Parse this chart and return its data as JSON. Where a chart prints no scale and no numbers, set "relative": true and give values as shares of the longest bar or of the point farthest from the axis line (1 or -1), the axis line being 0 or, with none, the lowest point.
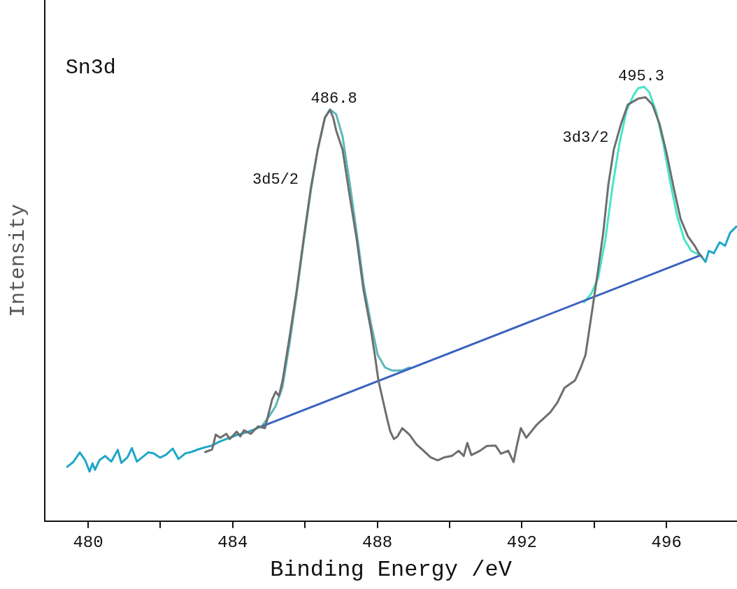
{
  "chart_data": {
    "type": "line",
    "xlabel": "Binding Energy /eV",
    "ylabel": "Intensity",
    "relative": true,
    "xlim": [
      478.8,
      497.95
    ],
    "xticks": [
      480,
      {
        "value": 482,
        "label": null
      },
      484,
      {
        "value": 486,
        "label": null
      },
      488,
      {
        "value": 490,
        "label": null
      },
      492,
      {
        "value": 494,
        "label": null
      },
      496
    ],
    "grid": false,
    "legend": false,
    "marker": "none",
    "line_style": "solid",
    "tick_labels": "x",
    "annotations": [
      "Sn3d",
      {
        "text": "486.8",
        "x": 486.8,
        "y": 0.948
      },
      {
        "text": "495.3",
        "x": 495.3,
        "y": 1.0
      },
      "3d5/2",
      "3d3/2"
    ],
    "series": [
      {
        "color": "#6e6e6e",
        "x": [
          483.24,
          483.43,
          483.53,
          483.66,
          483.82,
          483.92,
          484.11,
          484.21,
          484.31,
          484.5,
          484.7,
          484.89,
          485.09,
          485.19,
          485.28,
          485.38,
          485.58,
          485.77,
          485.96,
          486.16,
          486.35,
          486.55,
          486.69,
          486.78,
          486.86,
          487.04,
          487.23,
          487.43,
          487.62,
          487.82,
          487.93,
          488.03,
          488.15,
          488.27,
          488.36,
          488.46,
          488.56,
          488.69,
          488.89,
          489.08,
          489.28,
          489.47,
          489.67,
          489.86,
          490.06,
          490.25,
          490.39,
          490.49,
          490.6,
          490.84,
          491.03,
          491.27,
          491.42,
          491.62,
          491.77,
          491.85,
          491.97,
          492.12,
          492.4,
          492.79,
          492.98,
          493.18,
          493.47,
          493.63,
          493.76,
          493.92,
          494.09,
          494.25,
          494.39,
          494.54,
          494.74,
          494.93,
          495.22,
          495.42,
          495.61,
          495.81,
          496.0,
          496.2,
          496.39,
          496.59,
          496.78,
          496.88,
          496.98
        ],
        "values": [
          0.159,
          0.165,
          0.199,
          0.192,
          0.201,
          0.189,
          0.206,
          0.195,
          0.209,
          0.201,
          0.218,
          0.214,
          0.28,
          0.298,
          0.288,
          0.324,
          0.428,
          0.531,
          0.649,
          0.767,
          0.855,
          0.929,
          0.947,
          0.929,
          0.9,
          0.855,
          0.752,
          0.649,
          0.531,
          0.442,
          0.383,
          0.324,
          0.28,
          0.236,
          0.206,
          0.189,
          0.195,
          0.214,
          0.199,
          0.177,
          0.162,
          0.147,
          0.14,
          0.147,
          0.15,
          0.162,
          0.15,
          0.18,
          0.152,
          0.162,
          0.173,
          0.174,
          0.155,
          0.162,
          0.136,
          0.17,
          0.214,
          0.192,
          0.221,
          0.251,
          0.273,
          0.307,
          0.324,
          0.354,
          0.383,
          0.472,
          0.568,
          0.664,
          0.774,
          0.855,
          0.914,
          0.959,
          0.973,
          0.976,
          0.959,
          0.914,
          0.848,
          0.767,
          0.696,
          0.656,
          0.634,
          0.619,
          0.608
        ]
      },
      {
        "color": "#1fa6c8",
        "x": [
          479.42,
          479.59,
          479.77,
          479.92,
          480.04,
          480.12,
          480.19,
          480.31,
          480.47,
          480.64,
          480.82,
          480.92,
          481.09,
          481.21,
          481.35,
          481.5,
          481.66,
          481.81,
          481.99,
          482.16,
          482.34,
          482.5,
          482.69,
          482.85,
          483.04,
          483.24,
          483.43,
          483.63,
          483.82,
          484.11,
          484.41,
          484.8,
          490.0,
          496.94,
          497.08,
          497.17,
          497.31,
          497.47,
          497.62,
          497.76,
          497.93
        ],
        "values": [
          0.125,
          0.136,
          0.158,
          0.14,
          0.114,
          0.133,
          0.118,
          0.14,
          0.15,
          0.137,
          0.164,
          0.134,
          0.147,
          0.168,
          0.137,
          0.147,
          0.158,
          0.156,
          0.146,
          0.153,
          0.167,
          0.143,
          0.156,
          0.159,
          0.165,
          0.17,
          0.174,
          0.183,
          0.189,
          0.198,
          0.205,
          0.218,
          null,
          0.612,
          0.597,
          0.622,
          0.617,
          0.642,
          0.634,
          0.664,
          0.678
        ]
      },
      {
        "color": "#3a62c0",
        "x": [
          484.8,
          496.94
        ],
        "values": [
          0.218,
          0.612
        ]
      },
      {
        "color": "#5cb8b8",
        "x": [
          484.8,
          484.99,
          485.19,
          485.38,
          485.58,
          485.77,
          485.96,
          486.16,
          486.35,
          486.55,
          486.69,
          486.86,
          487.04,
          487.23,
          487.43,
          487.62,
          487.82,
          488.01,
          488.21,
          488.4,
          488.69,
          488.89
        ],
        "values": [
          0.218,
          0.239,
          0.265,
          0.31,
          0.413,
          0.524,
          0.642,
          0.76,
          0.855,
          0.929,
          0.948,
          0.937,
          0.885,
          0.782,
          0.664,
          0.546,
          0.457,
          0.383,
          0.354,
          0.347,
          0.347,
          0.354
        ]
      },
      {
        "color": "#45e6c8",
        "x": [
          493.72,
          493.92,
          494.11,
          494.31,
          494.5,
          494.7,
          494.89,
          495.09,
          495.22,
          495.38,
          495.52,
          495.71,
          495.91,
          496.1,
          496.3,
          496.49,
          496.69,
          496.94
        ],
        "values": [
          0.504,
          0.524,
          0.56,
          0.649,
          0.767,
          0.87,
          0.944,
          0.981,
          0.997,
          1.0,
          0.988,
          0.944,
          0.87,
          0.782,
          0.701,
          0.649,
          0.622,
          0.612
        ]
      }
    ]
  }
}
